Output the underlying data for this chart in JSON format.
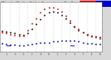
{
  "title_line1": "Milwaukee Weather",
  "title_line2": "Outdoor Temperature",
  "title_line3": "vs Dew Point",
  "title_line4": "(24 Hours)",
  "bg_color": "#d8d8d8",
  "plot_bg_color": "#ffffff",
  "grid_color": "#aaaaaa",
  "temp_color": "#dd0000",
  "dew_color": "#0000cc",
  "outdoor_color": "#000000",
  "hi_color": "#dd0000",
  "lo_color": "#0000cc",
  "legend_red_color": "#dd0000",
  "legend_blue_color": "#0000cc",
  "hours": [
    0,
    1,
    2,
    3,
    4,
    5,
    6,
    7,
    8,
    9,
    10,
    11,
    12,
    13,
    14,
    15,
    16,
    17,
    18,
    19,
    20,
    21,
    22,
    23
  ],
  "temp_values": [
    38,
    37,
    36,
    35,
    34,
    34,
    41,
    49,
    55,
    62,
    66,
    68,
    68,
    66,
    63,
    58,
    52,
    46,
    42,
    38,
    35,
    33,
    32,
    31
  ],
  "outdoor_values": [
    40,
    39,
    38,
    37,
    36,
    35,
    37,
    42,
    48,
    54,
    59,
    62,
    63,
    62,
    59,
    55,
    50,
    45,
    41,
    38,
    36,
    34,
    33,
    32
  ],
  "dew_values": [
    25,
    24,
    23,
    23,
    22,
    22,
    23,
    24,
    25,
    26,
    26,
    26,
    27,
    27,
    28,
    28,
    28,
    28,
    27,
    26,
    25,
    25,
    24,
    24
  ],
  "ylim_min": 15,
  "ylim_max": 75,
  "yticks": [
    20,
    30,
    40,
    50,
    60,
    70
  ],
  "ytick_labels": [
    "",
    "",
    "",
    "",
    "",
    ""
  ],
  "grid_hours": [
    0,
    2,
    4,
    6,
    8,
    10,
    12,
    14,
    16,
    18,
    20,
    22
  ],
  "marker_size": 1.2,
  "dot_size": 0.8
}
